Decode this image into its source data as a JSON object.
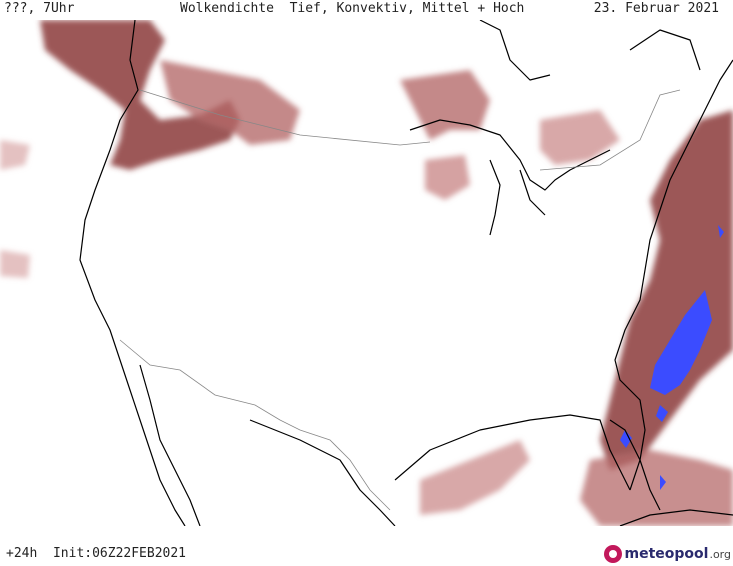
{
  "header": {
    "left": "???, 7Uhr",
    "center": "Wolkendichte  Tief, Konvektiv, Mittel + Hoch",
    "right": "23. Februar 2021"
  },
  "footer": {
    "run": "+24h  Init:06Z22FEB2021"
  },
  "logo": {
    "brand": "meteopool",
    "tld": ".org"
  },
  "colors": {
    "cloud_dense": "#8b3a3a",
    "cloud_mid": "#b56a6a",
    "cloud_light": "#d9a7a7",
    "precip": "#3b4cff",
    "coast": "#000000",
    "border": "#888888",
    "logo_accent": "#c2185b"
  }
}
